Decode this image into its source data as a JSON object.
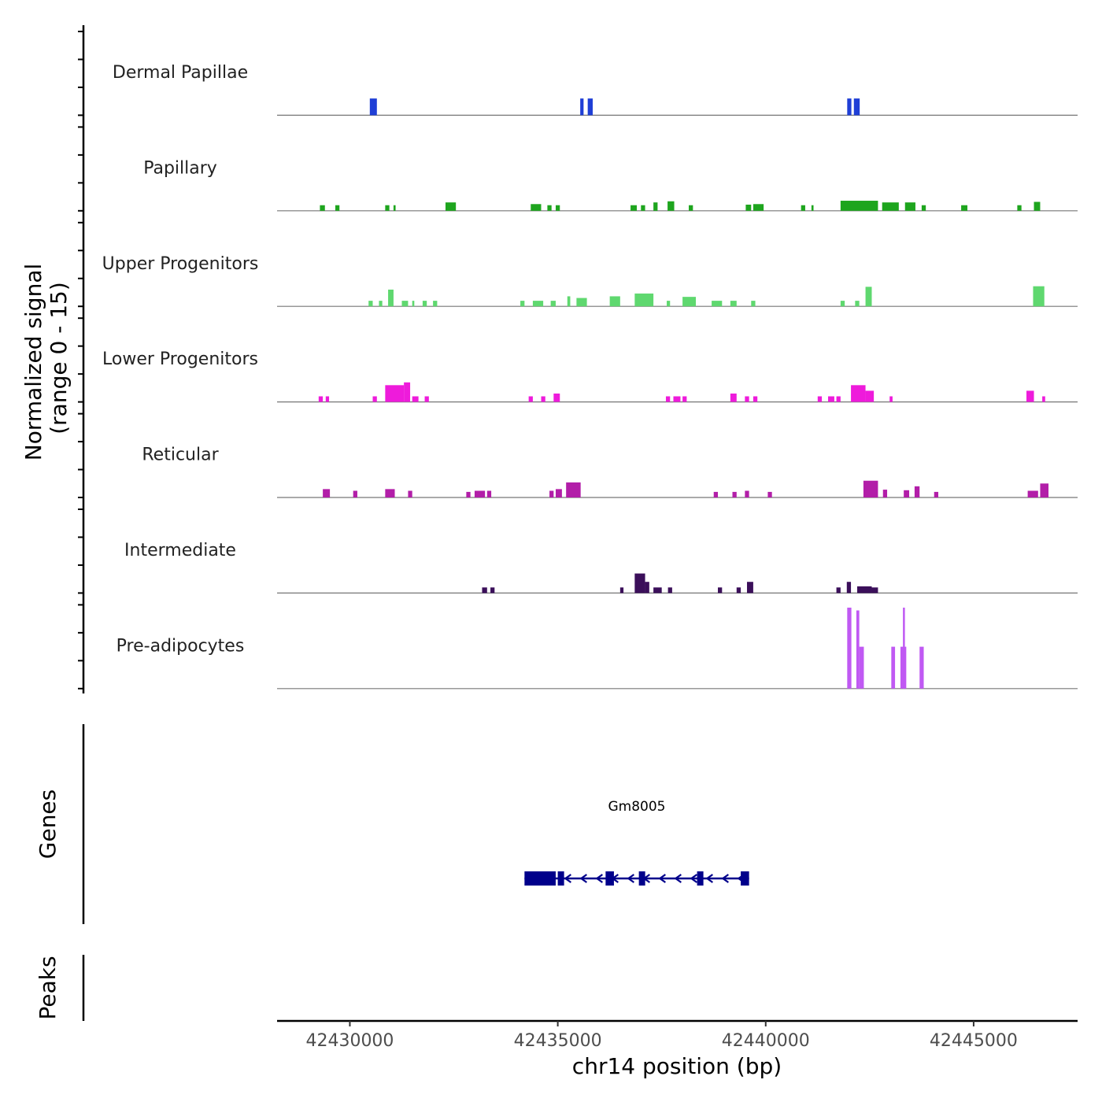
{
  "chart_data": {
    "type": "area",
    "title": "",
    "y_axis_title_line1": "Normalized signal",
    "y_axis_title_line2": "(range 0 - 15)",
    "ylim": [
      0,
      15
    ],
    "xlabel": "chr14 position (bp)",
    "xlim": [
      42428250,
      42447500
    ],
    "x_ticks": [
      {
        "value": 42430000,
        "label": "42430000"
      },
      {
        "value": 42435000,
        "label": "42435000"
      },
      {
        "value": 42440000,
        "label": "42440000"
      },
      {
        "value": 42445000,
        "label": "42445000"
      }
    ],
    "tracks": [
      {
        "name": "Dermal Papillae",
        "color": "#1f3fd6",
        "peaks": [
          [
            42430480,
            42430650,
            3
          ],
          [
            42435540,
            42435620,
            3
          ],
          [
            42435720,
            42435840,
            3
          ],
          [
            42441960,
            42442060,
            3
          ],
          [
            42442120,
            42442260,
            3
          ]
        ]
      },
      {
        "name": "Papillary",
        "color": "#1ea51e",
        "peaks": [
          [
            42429280,
            42429400,
            1
          ],
          [
            42429650,
            42429750,
            1
          ],
          [
            42430850,
            42430950,
            1
          ],
          [
            42431050,
            42431100,
            1
          ],
          [
            42432300,
            42432550,
            1.5
          ],
          [
            42434350,
            42434600,
            1.2
          ],
          [
            42434750,
            42434850,
            1
          ],
          [
            42434950,
            42435050,
            1
          ],
          [
            42436750,
            42436900,
            1
          ],
          [
            42437000,
            42437100,
            1
          ],
          [
            42437300,
            42437400,
            1.5
          ],
          [
            42437640,
            42437800,
            1.7
          ],
          [
            42438150,
            42438250,
            1
          ],
          [
            42439520,
            42439650,
            1.1
          ],
          [
            42439700,
            42439950,
            1.2
          ],
          [
            42440850,
            42440950,
            1
          ],
          [
            42441100,
            42441150,
            1
          ],
          [
            42441800,
            42442700,
            1.8
          ],
          [
            42442800,
            42443200,
            1.5
          ],
          [
            42443350,
            42443600,
            1.5
          ],
          [
            42443750,
            42443850,
            1
          ],
          [
            42444700,
            42444850,
            1
          ],
          [
            42446050,
            42446150,
            1
          ],
          [
            42446450,
            42446600,
            1.6
          ]
        ]
      },
      {
        "name": "Upper Progenitors",
        "color": "#5fd86f",
        "peaks": [
          [
            42430450,
            42430550,
            1
          ],
          [
            42430700,
            42430780,
            1
          ],
          [
            42430920,
            42431050,
            3
          ],
          [
            42431250,
            42431400,
            1
          ],
          [
            42431500,
            42431550,
            1
          ],
          [
            42431750,
            42431850,
            1
          ],
          [
            42432000,
            42432100,
            1
          ],
          [
            42434100,
            42434200,
            1
          ],
          [
            42434400,
            42434650,
            1
          ],
          [
            42434830,
            42434950,
            1
          ],
          [
            42435230,
            42435300,
            1.8
          ],
          [
            42435450,
            42435700,
            1.5
          ],
          [
            42436250,
            42436500,
            1.8
          ],
          [
            42436850,
            42437300,
            2.3
          ],
          [
            42437620,
            42437700,
            1
          ],
          [
            42438000,
            42438320,
            1.7
          ],
          [
            42438700,
            42438950,
            1
          ],
          [
            42439150,
            42439300,
            1
          ],
          [
            42439650,
            42439750,
            1
          ],
          [
            42441800,
            42441900,
            1
          ],
          [
            42442150,
            42442250,
            1
          ],
          [
            42442400,
            42442550,
            3.5
          ],
          [
            42446430,
            42446700,
            3.6
          ]
        ]
      },
      {
        "name": "Lower Progenitors",
        "color": "#ee1bdb",
        "peaks": [
          [
            42429250,
            42429350,
            1
          ],
          [
            42429420,
            42429500,
            1
          ],
          [
            42430550,
            42430650,
            1
          ],
          [
            42430850,
            42431300,
            3
          ],
          [
            42431300,
            42431450,
            3.5
          ],
          [
            42431500,
            42431650,
            1
          ],
          [
            42431800,
            42431900,
            1
          ],
          [
            42434300,
            42434400,
            1
          ],
          [
            42434600,
            42434700,
            1
          ],
          [
            42434900,
            42435050,
            1.5
          ],
          [
            42437600,
            42437700,
            1
          ],
          [
            42437780,
            42437950,
            1
          ],
          [
            42438000,
            42438100,
            1
          ],
          [
            42439150,
            42439300,
            1.5
          ],
          [
            42439500,
            42439600,
            1
          ],
          [
            42439700,
            42439800,
            1
          ],
          [
            42441250,
            42441350,
            1
          ],
          [
            42441500,
            42441650,
            1
          ],
          [
            42441700,
            42441800,
            1
          ],
          [
            42442050,
            42442400,
            3
          ],
          [
            42442400,
            42442600,
            2
          ],
          [
            42442980,
            42443050,
            1
          ],
          [
            42446270,
            42446450,
            2
          ],
          [
            42446650,
            42446720,
            1
          ]
        ]
      },
      {
        "name": "Reticular",
        "color": "#b21ea8",
        "peaks": [
          [
            42429350,
            42429520,
            1.5
          ],
          [
            42430080,
            42430180,
            1.2
          ],
          [
            42430850,
            42431080,
            1.5
          ],
          [
            42431400,
            42431500,
            1.2
          ],
          [
            42432800,
            42432900,
            1
          ],
          [
            42433000,
            42433250,
            1.2
          ],
          [
            42433300,
            42433400,
            1.2
          ],
          [
            42434800,
            42434900,
            1.2
          ],
          [
            42434950,
            42435100,
            1.5
          ],
          [
            42435200,
            42435550,
            2.7
          ],
          [
            42438750,
            42438850,
            1
          ],
          [
            42439200,
            42439300,
            1
          ],
          [
            42439500,
            42439600,
            1.2
          ],
          [
            42440050,
            42440150,
            1
          ],
          [
            42442350,
            42442700,
            3
          ],
          [
            42442820,
            42442920,
            1.4
          ],
          [
            42443320,
            42443450,
            1.3
          ],
          [
            42443580,
            42443700,
            2
          ],
          [
            42444050,
            42444150,
            1
          ],
          [
            42446300,
            42446550,
            1.2
          ],
          [
            42446600,
            42446800,
            2.5
          ]
        ]
      },
      {
        "name": "Intermediate",
        "color": "#3b0f5a",
        "peaks": [
          [
            42433180,
            42433300,
            1
          ],
          [
            42433380,
            42433480,
            1
          ],
          [
            42436500,
            42436580,
            1
          ],
          [
            42436850,
            42437100,
            3.5
          ],
          [
            42437100,
            42437200,
            2
          ],
          [
            42437300,
            42437500,
            1
          ],
          [
            42437650,
            42437750,
            1
          ],
          [
            42438850,
            42438950,
            1
          ],
          [
            42439300,
            42439400,
            1
          ],
          [
            42439550,
            42439700,
            2
          ],
          [
            42441700,
            42441800,
            1
          ],
          [
            42441950,
            42442050,
            2
          ],
          [
            42442200,
            42442550,
            1.2
          ],
          [
            42442550,
            42442700,
            1
          ]
        ]
      },
      {
        "name": "Pre-adipocytes",
        "color": "#c059f3",
        "peaks": [
          [
            42441960,
            42442060,
            14.5
          ],
          [
            42442180,
            42442250,
            14
          ],
          [
            42442250,
            42442360,
            7.5
          ],
          [
            42443020,
            42443110,
            7.5
          ],
          [
            42443240,
            42443380,
            7.5
          ],
          [
            42443300,
            42443330,
            14.5
          ],
          [
            42443700,
            42443800,
            7.5
          ]
        ]
      }
    ],
    "genes": [
      {
        "name": "Gm8005",
        "strand": "-",
        "start": 42434200,
        "end": 42439600,
        "color": "#00008b",
        "exons": [
          [
            42434200,
            42434950
          ],
          [
            42435000,
            42435050
          ],
          [
            42436150,
            42436350
          ],
          [
            42436950,
            42437080
          ],
          [
            42438350,
            42438500
          ],
          [
            42439400,
            42439600
          ]
        ]
      }
    ],
    "side_labels": {
      "genes": "Genes",
      "peaks": "Peaks"
    },
    "grid": false,
    "legend": "none"
  }
}
